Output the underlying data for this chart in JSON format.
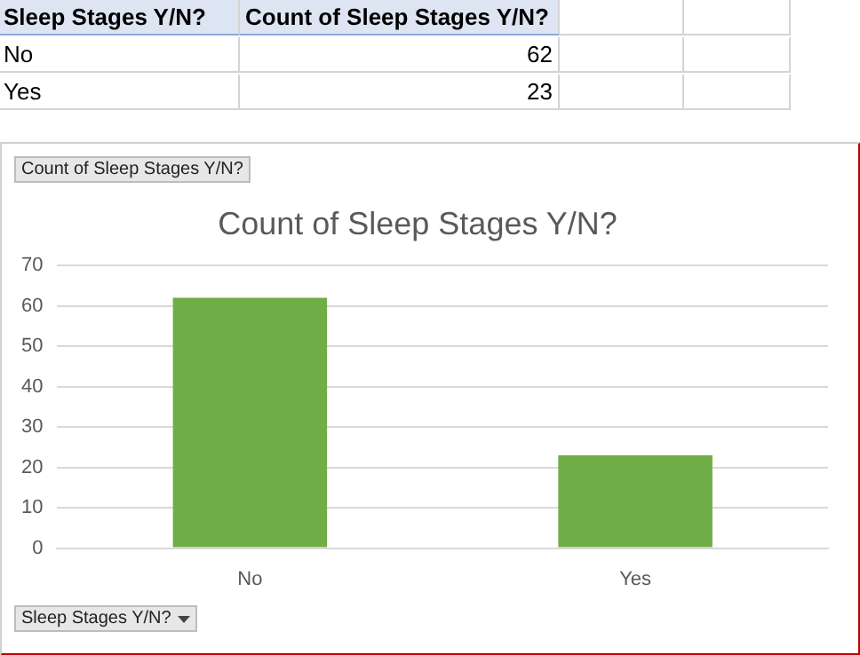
{
  "chart_data": {
    "type": "bar",
    "title": "Count of Sleep Stages Y/N?",
    "categories": [
      "No",
      "Yes"
    ],
    "values": [
      62,
      23
    ],
    "color": "#70ad47",
    "ylim": [
      0,
      70
    ],
    "yticks": [
      0,
      10,
      20,
      30,
      40,
      50,
      60,
      70
    ],
    "grid": "y",
    "legend": false,
    "annotations": [
      "Sleep Stages Y/N?",
      "Count of Sleep Stages Y/N?",
      "62",
      "23",
      "Count of Sleep Stages Y/N?",
      "Sleep Stages Y/N?"
    ]
  }
}
